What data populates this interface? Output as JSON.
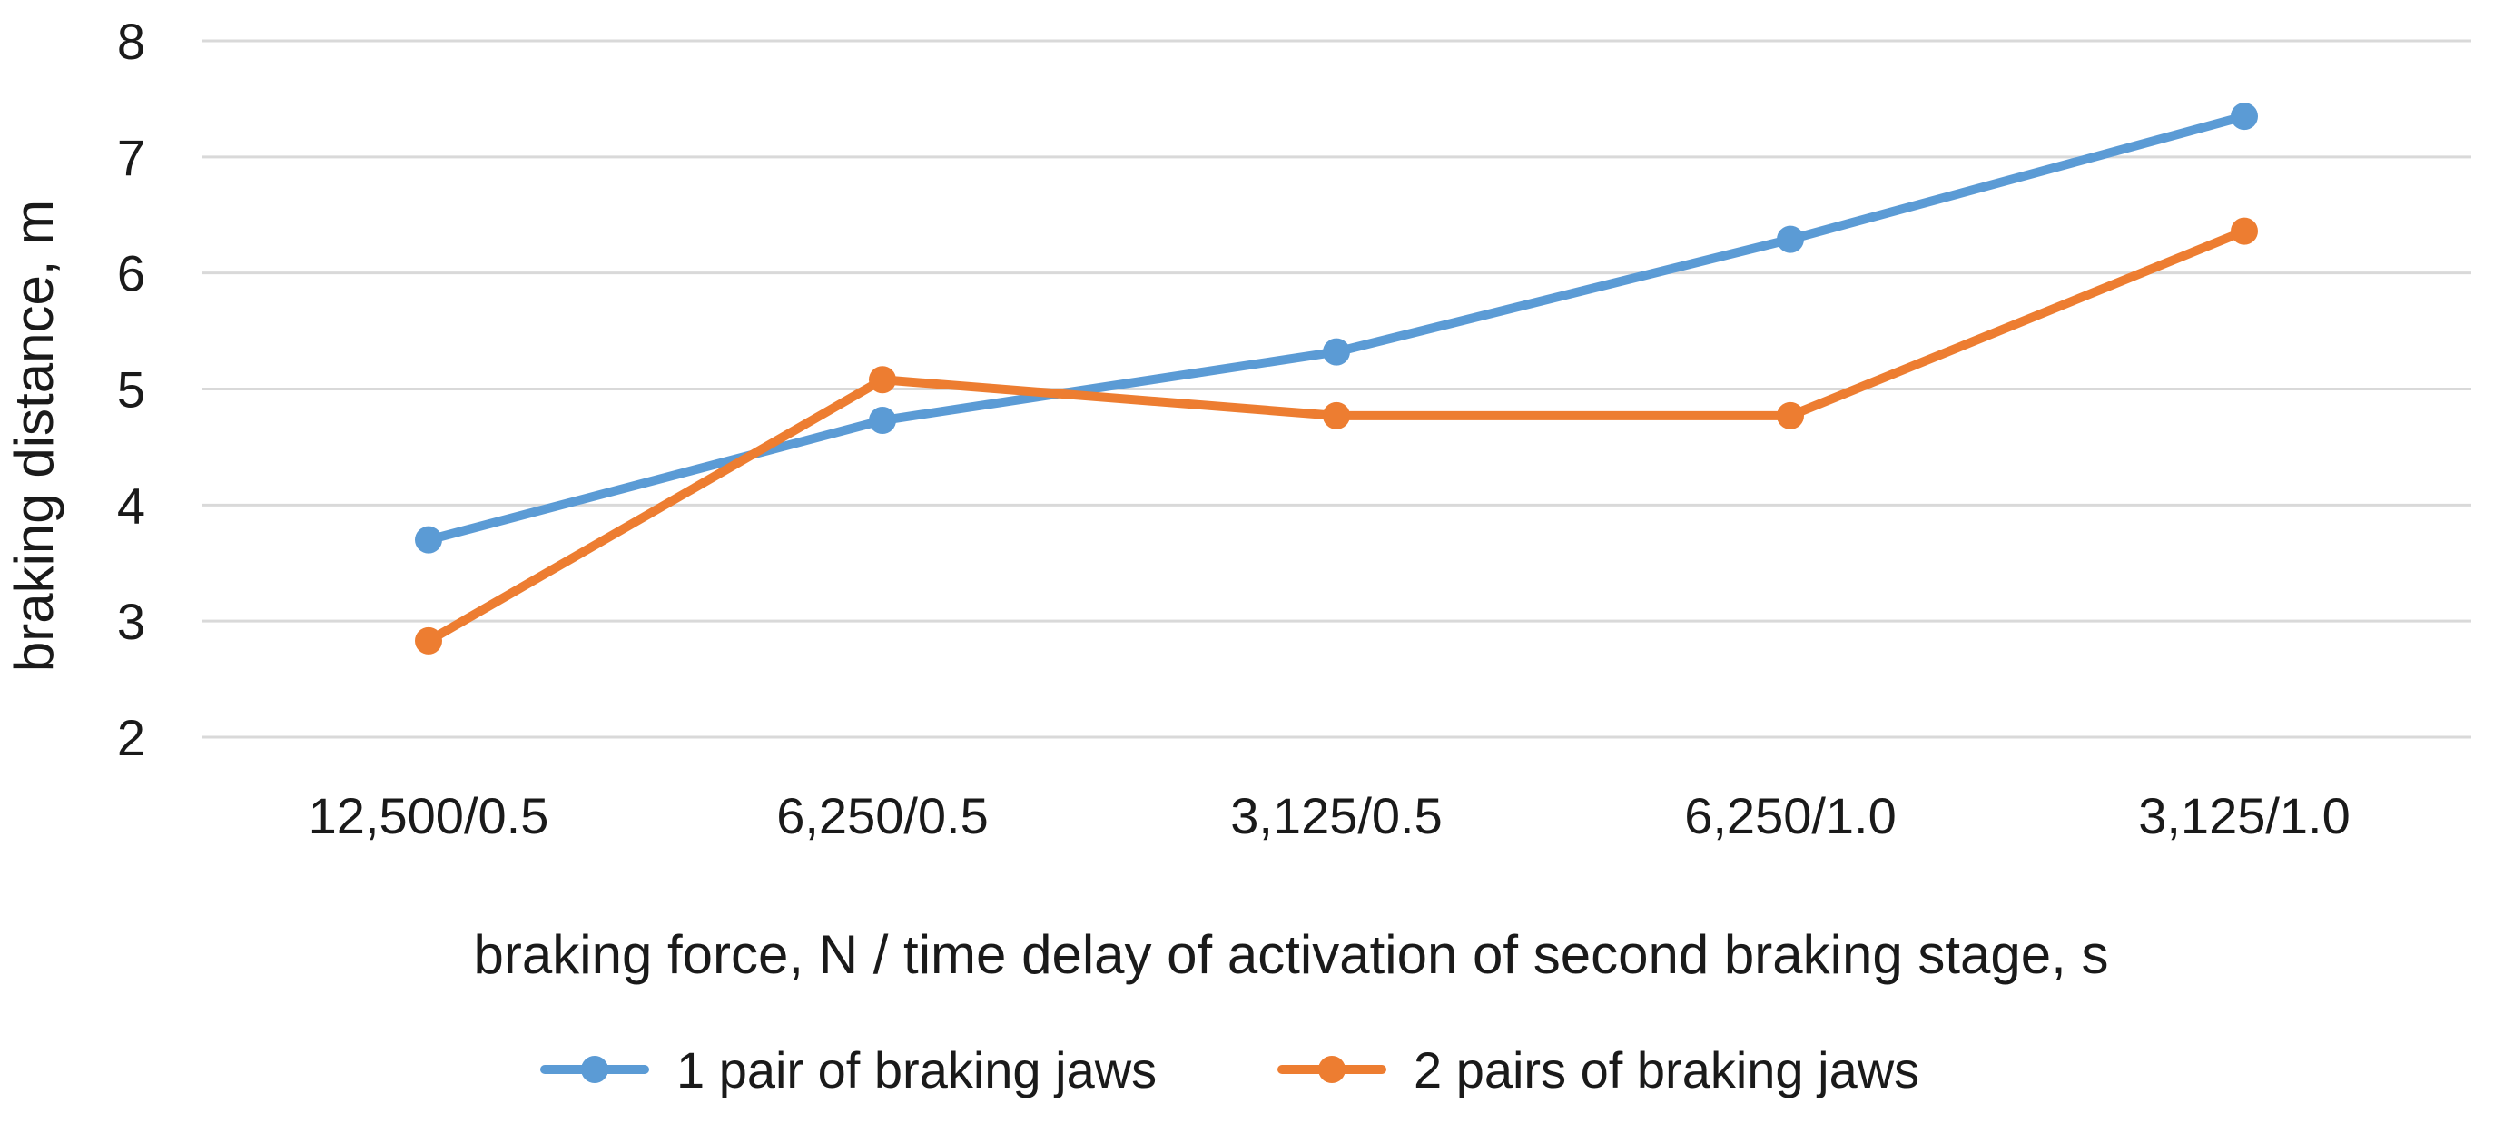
{
  "chart_data": {
    "type": "line",
    "title": "",
    "xlabel": "braking force, N / time delay of activation of second braking stage, s",
    "ylabel": "braking distance, m",
    "categories": [
      "12,500/0.5",
      "6,250/0.5",
      "3,125/0.5",
      "6,250/1.0",
      "3,125/1.0"
    ],
    "ylim": [
      2,
      8
    ],
    "yticks": [
      2,
      3,
      4,
      5,
      6,
      7,
      8
    ],
    "grid": true,
    "legend_position": "bottom",
    "series": [
      {
        "name": "1 pair of braking jaws",
        "color": "#5B9BD5",
        "values": [
          3.7,
          4.73,
          5.32,
          6.29,
          7.35
        ]
      },
      {
        "name": "2 pairs of braking jaws",
        "color": "#ED7D31",
        "values": [
          2.83,
          5.08,
          4.77,
          4.77,
          6.36
        ]
      }
    ]
  }
}
